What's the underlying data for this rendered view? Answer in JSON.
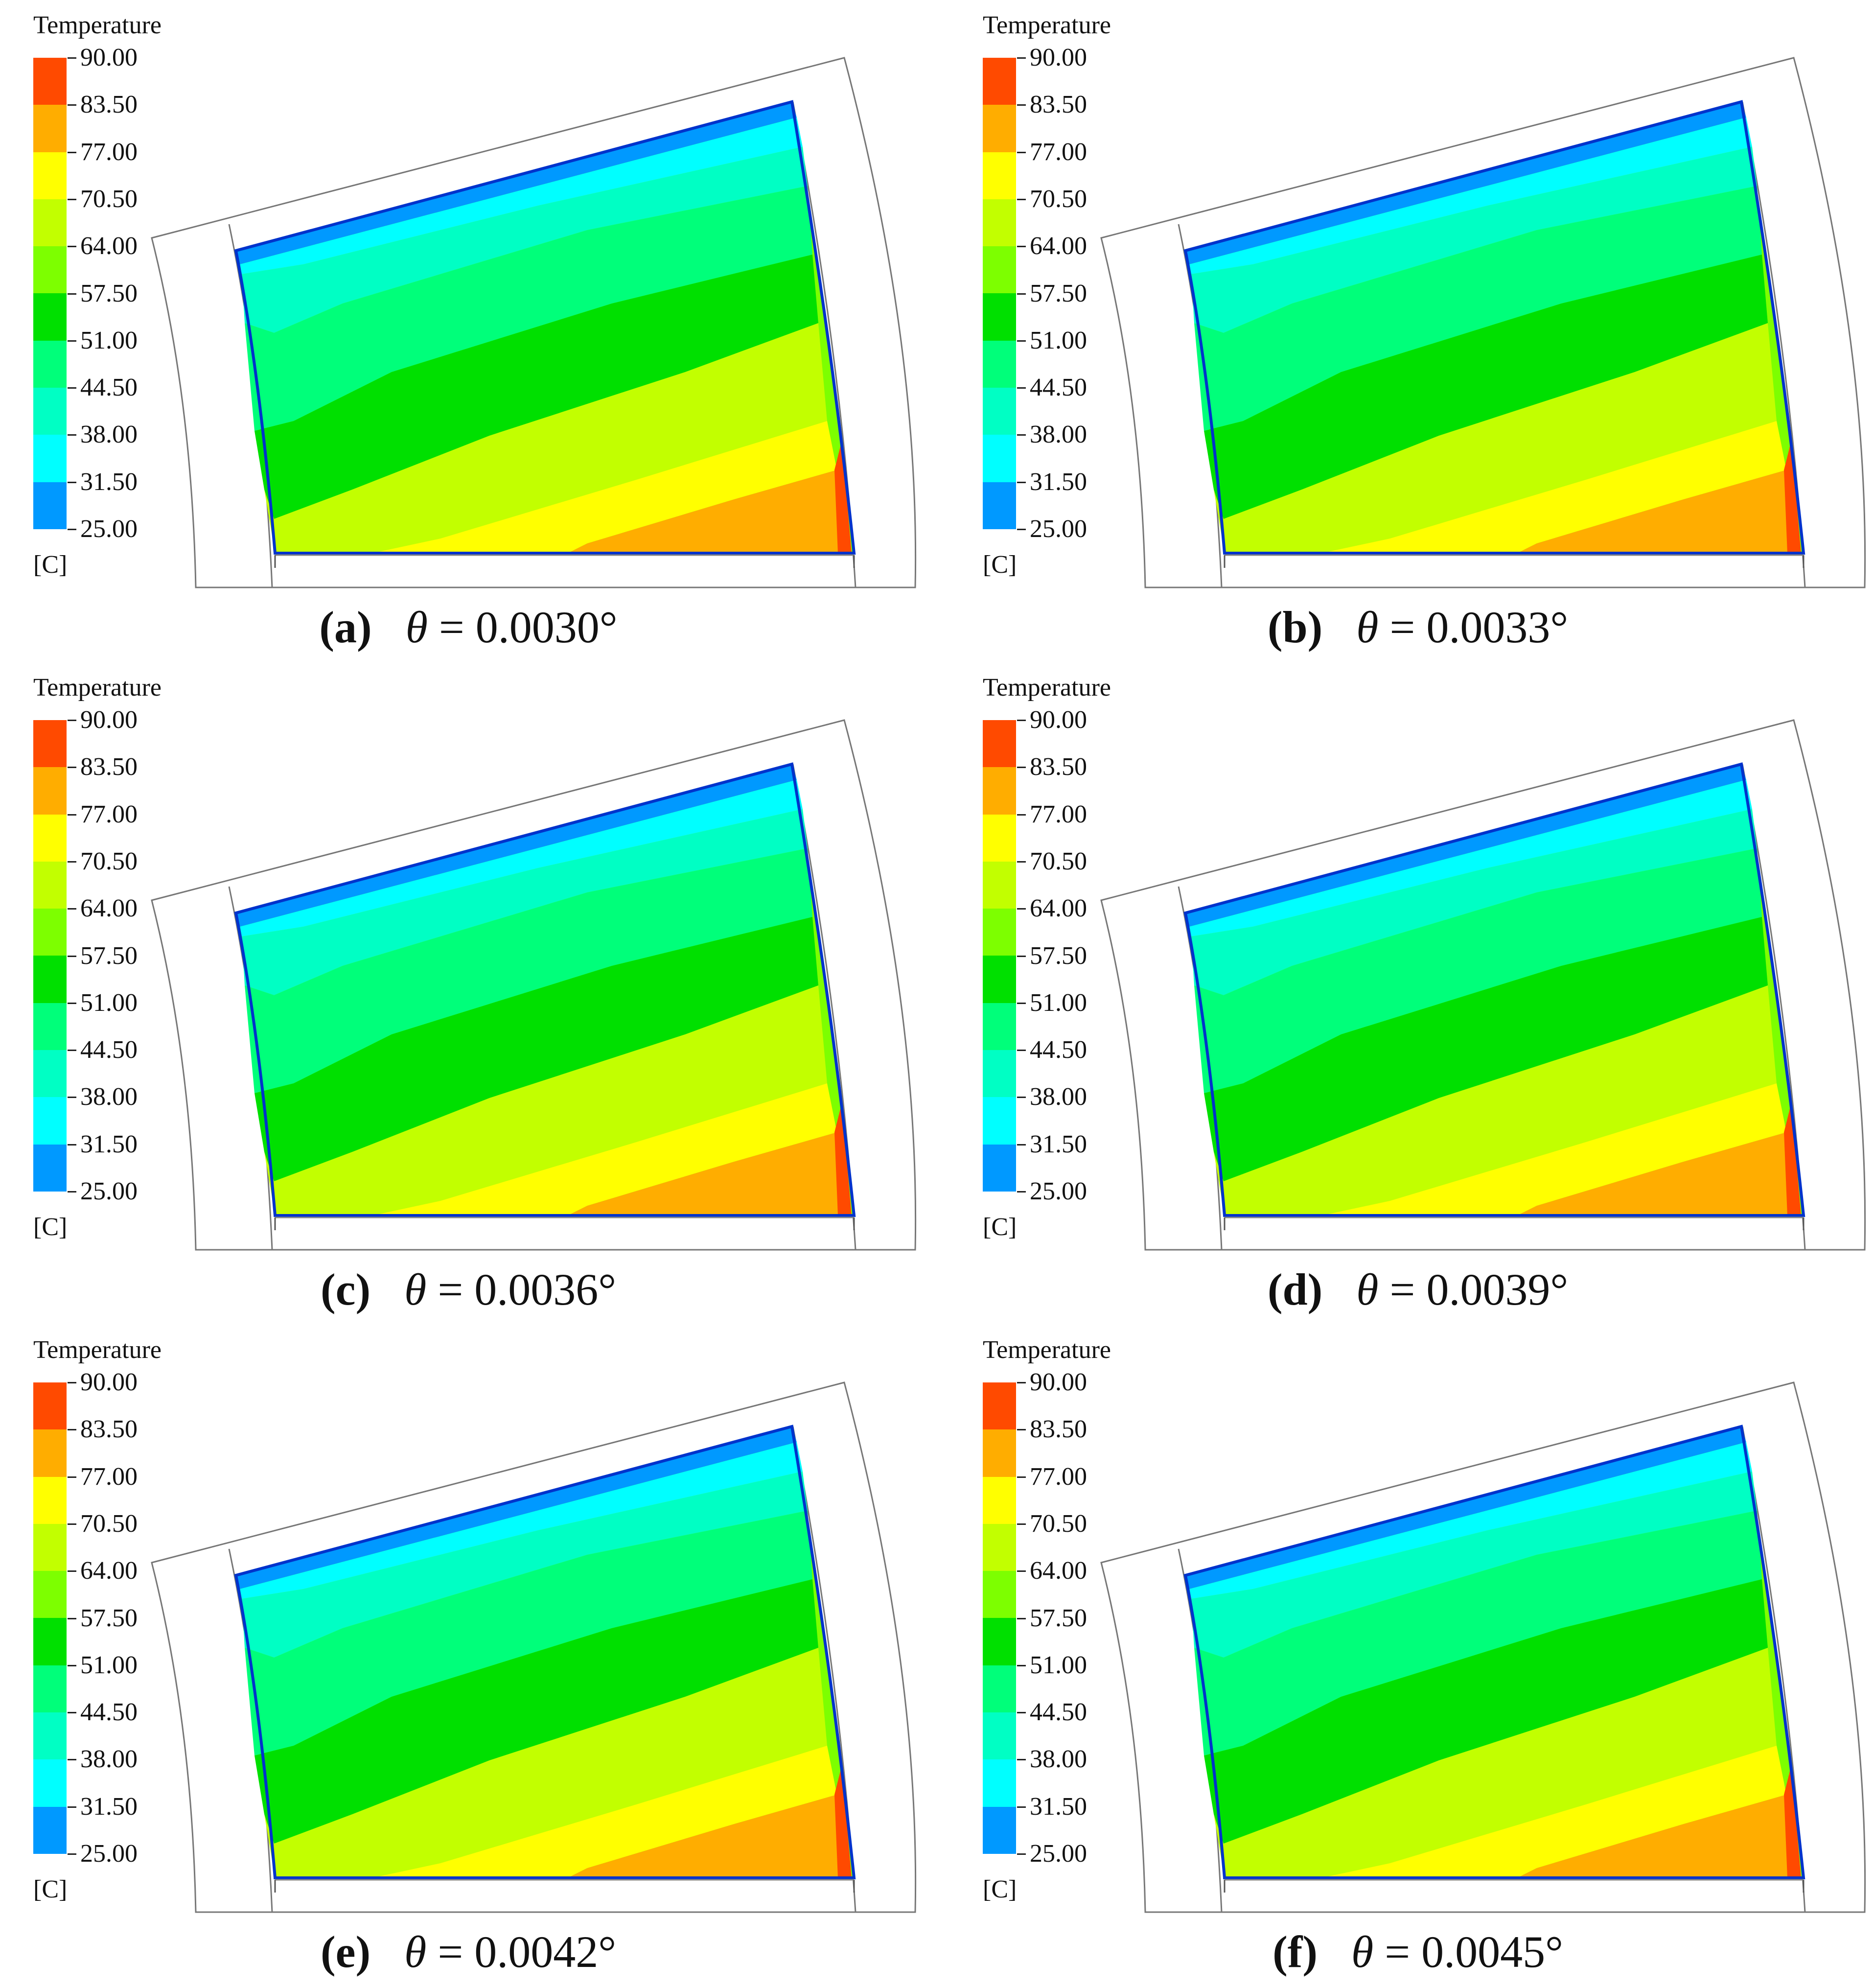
{
  "legend": {
    "title": "Temperature",
    "unit": "[C]",
    "levels": [
      "90.00",
      "83.50",
      "77.00",
      "70.50",
      "64.00",
      "57.50",
      "51.00",
      "44.50",
      "38.00",
      "31.50",
      "25.00"
    ],
    "colors": [
      "#ff4a00",
      "#ffad00",
      "#ffff00",
      "#c2ff00",
      "#7dff00",
      "#00e000",
      "#00ff7a",
      "#00ffc4",
      "#00ffff",
      "#0099ff",
      "#0033ff"
    ]
  },
  "panels": [
    {
      "letter": "(a)",
      "symbol": "θ",
      "equals": "=",
      "value": "0.0030°"
    },
    {
      "letter": "(b)",
      "symbol": "θ",
      "equals": "=",
      "value": "0.0033°"
    },
    {
      "letter": "(c)",
      "symbol": "θ",
      "equals": "=",
      "value": "0.0036°"
    },
    {
      "letter": "(d)",
      "symbol": "θ",
      "equals": "=",
      "value": "0.0039°"
    },
    {
      "letter": "(e)",
      "symbol": "θ",
      "equals": "=",
      "value": "0.0042°"
    },
    {
      "letter": "(f)",
      "symbol": "θ",
      "equals": "=",
      "value": "0.0045°"
    }
  ]
}
